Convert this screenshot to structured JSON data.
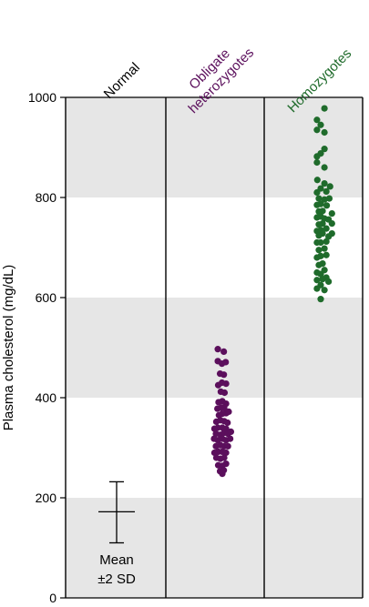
{
  "chart_data": {
    "type": "scatter",
    "ylabel": "Plasma cholesterol (mg/dL)",
    "ylim": [
      0,
      1000
    ],
    "yticks": [
      0,
      200,
      400,
      600,
      800,
      1000
    ],
    "grid": "alternating horizontal bands every 200",
    "band_color": "#e6e6e6",
    "categories": [
      {
        "label_lines": [
          "Normal"
        ],
        "color": "#000000"
      },
      {
        "label_lines": [
          "Obligate",
          "heterozygotes"
        ],
        "color": "#5b0f5c"
      },
      {
        "label_lines": [
          "Homozygotes"
        ],
        "color": "#1f6b2b"
      }
    ],
    "normal_summary": {
      "mean": 172,
      "upper": 232,
      "lower": 110,
      "note_lines": [
        "Mean",
        "±2 SD"
      ]
    },
    "series": [
      {
        "category_index": 1,
        "color": "#5b0f5c",
        "points": [
          [
            -0.24,
            497
          ],
          [
            0.08,
            492
          ],
          [
            -0.02,
            468
          ],
          [
            -0.24,
            473
          ],
          [
            0.18,
            471
          ],
          [
            -0.12,
            448
          ],
          [
            0.08,
            446
          ],
          [
            -0.02,
            430
          ],
          [
            0.2,
            428
          ],
          [
            -0.22,
            425
          ],
          [
            -0.08,
            412
          ],
          [
            0.12,
            410
          ],
          [
            0.0,
            393
          ],
          [
            -0.2,
            391
          ],
          [
            0.2,
            388
          ],
          [
            -0.26,
            378
          ],
          [
            0.1,
            380
          ],
          [
            -0.06,
            380
          ],
          [
            0.2,
            369
          ],
          [
            0.0,
            368
          ],
          [
            -0.18,
            365
          ],
          [
            0.34,
            372
          ],
          [
            -0.32,
            352
          ],
          [
            -0.1,
            355
          ],
          [
            0.1,
            353
          ],
          [
            0.28,
            350
          ],
          [
            -0.24,
            340
          ],
          [
            0.0,
            340
          ],
          [
            0.2,
            338
          ],
          [
            -0.42,
            338
          ],
          [
            -0.34,
            328
          ],
          [
            -0.1,
            326
          ],
          [
            0.1,
            330
          ],
          [
            0.3,
            328
          ],
          [
            0.46,
            332
          ],
          [
            -0.24,
            315
          ],
          [
            0.0,
            318
          ],
          [
            0.2,
            315
          ],
          [
            -0.44,
            318
          ],
          [
            0.42,
            318
          ],
          [
            -0.34,
            303
          ],
          [
            -0.1,
            305
          ],
          [
            0.1,
            303
          ],
          [
            0.3,
            303
          ],
          [
            -0.22,
            292
          ],
          [
            0.0,
            292
          ],
          [
            0.2,
            290
          ],
          [
            -0.42,
            290
          ],
          [
            -0.32,
            280
          ],
          [
            -0.1,
            278
          ],
          [
            0.1,
            280
          ],
          [
            0.2,
            268
          ],
          [
            -0.22,
            265
          ],
          [
            0.0,
            264
          ],
          [
            -0.12,
            253
          ],
          [
            0.08,
            255
          ],
          [
            0.0,
            248
          ]
        ]
      },
      {
        "category_index": 2,
        "color": "#1f6b2b",
        "points": [
          [
            0.2,
            978
          ],
          [
            -0.2,
            955
          ],
          [
            0.0,
            945
          ],
          [
            -0.2,
            935
          ],
          [
            0.2,
            930
          ],
          [
            0.2,
            897
          ],
          [
            0.0,
            888
          ],
          [
            -0.2,
            882
          ],
          [
            -0.2,
            870
          ],
          [
            0.2,
            860
          ],
          [
            -0.18,
            835
          ],
          [
            0.2,
            828
          ],
          [
            0.0,
            818
          ],
          [
            0.3,
            812
          ],
          [
            -0.2,
            810
          ],
          [
            0.5,
            822
          ],
          [
            -0.1,
            798
          ],
          [
            0.2,
            796
          ],
          [
            0.46,
            798
          ],
          [
            0.0,
            787
          ],
          [
            -0.2,
            785
          ],
          [
            0.32,
            784
          ],
          [
            0.1,
            773
          ],
          [
            -0.1,
            772
          ],
          [
            0.6,
            768
          ],
          [
            0.0,
            762
          ],
          [
            -0.2,
            760
          ],
          [
            0.2,
            758
          ],
          [
            0.42,
            756
          ],
          [
            0.6,
            748
          ],
          [
            0.1,
            748
          ],
          [
            -0.1,
            746
          ],
          [
            0.3,
            738
          ],
          [
            0.0,
            735
          ],
          [
            -0.2,
            733
          ],
          [
            0.6,
            728
          ],
          [
            0.1,
            728
          ],
          [
            -0.1,
            724
          ],
          [
            0.42,
            722
          ],
          [
            0.3,
            712
          ],
          [
            0.0,
            710
          ],
          [
            -0.2,
            710
          ],
          [
            0.2,
            698
          ],
          [
            -0.1,
            695
          ],
          [
            0.3,
            685
          ],
          [
            0.0,
            683
          ],
          [
            -0.2,
            680
          ],
          [
            0.1,
            668
          ],
          [
            -0.1,
            665
          ],
          [
            0.2,
            655
          ],
          [
            -0.2,
            650
          ],
          [
            0.0,
            647
          ],
          [
            0.3,
            640
          ],
          [
            0.1,
            637
          ],
          [
            -0.2,
            635
          ],
          [
            0.42,
            632
          ],
          [
            0.0,
            625
          ],
          [
            -0.2,
            618
          ],
          [
            0.2,
            615
          ],
          [
            0.0,
            597
          ]
        ]
      }
    ]
  }
}
